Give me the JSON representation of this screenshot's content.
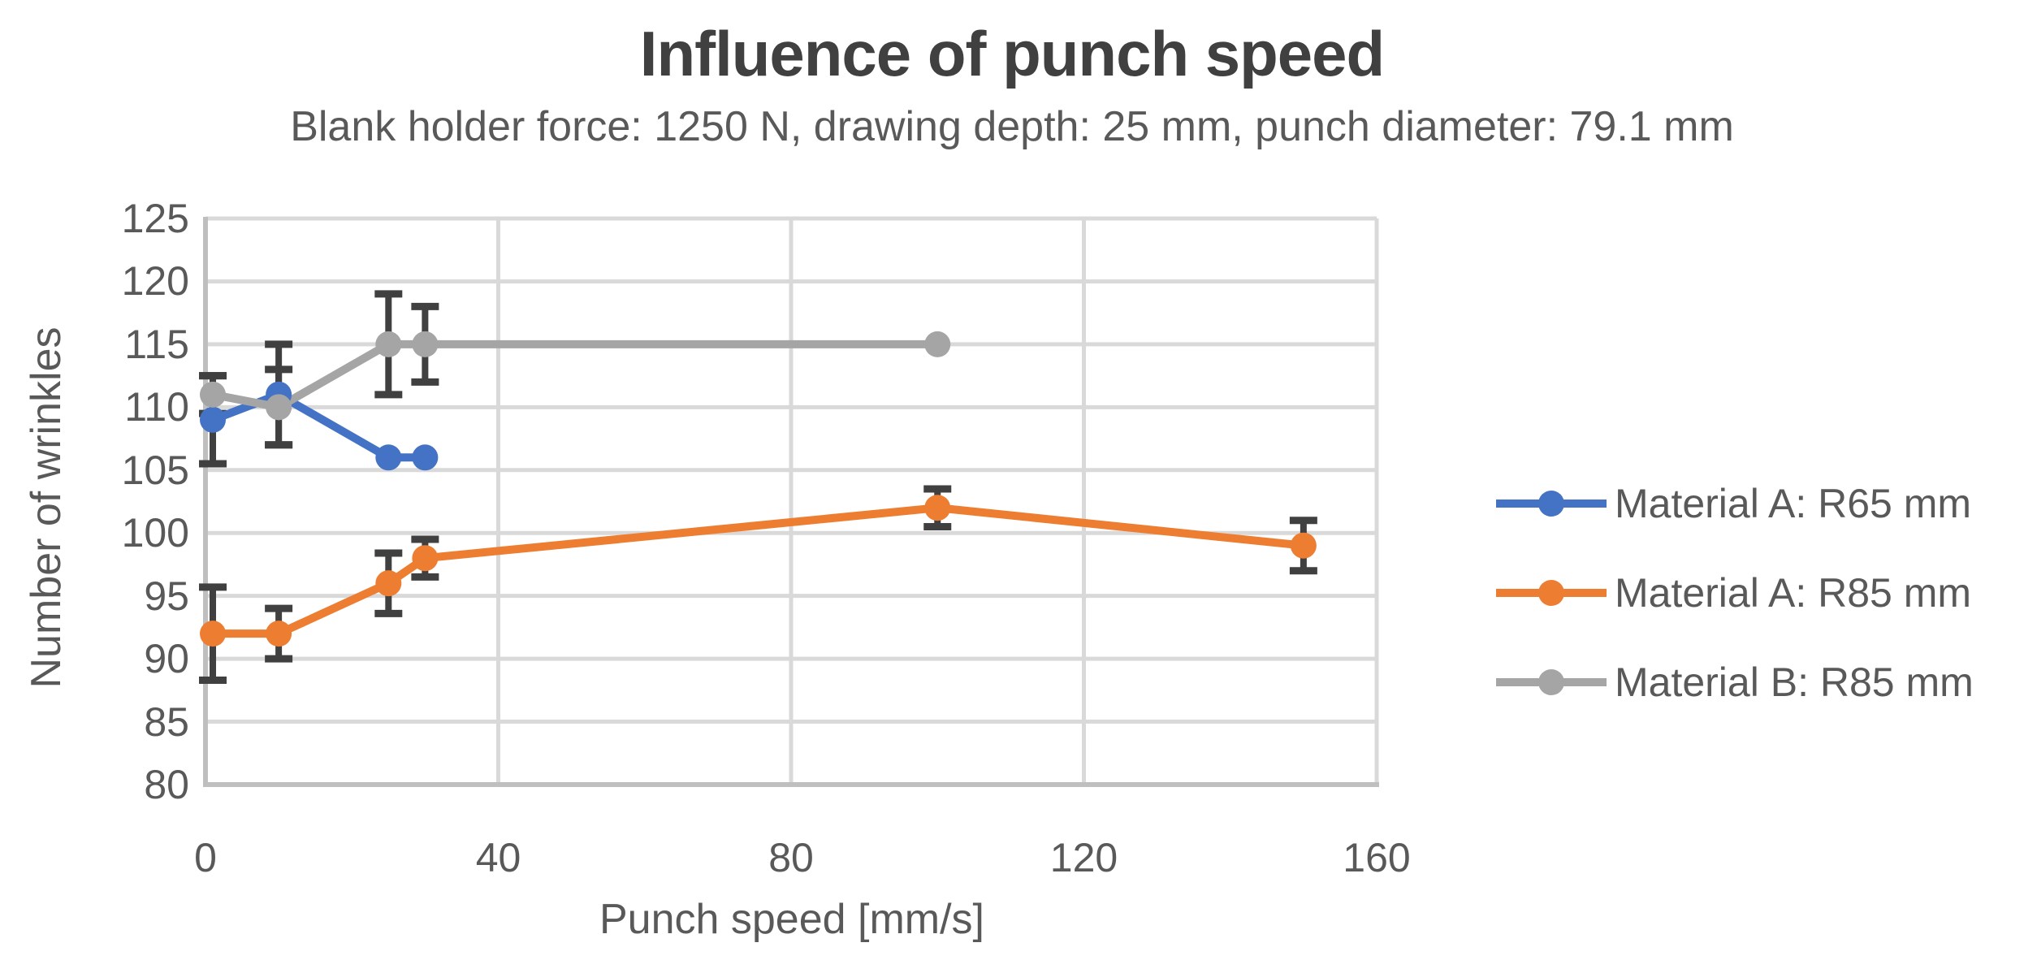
{
  "chart_data": {
    "type": "line",
    "title": "Influence of punch speed",
    "subtitle": "Blank holder force: 1250 N, drawing depth: 25 mm, punch diameter: 79.1 mm",
    "xlabel": "Punch speed [mm/s]",
    "ylabel": "Number of wrinkles",
    "xlim": [
      0,
      160
    ],
    "ylim": [
      80,
      125
    ],
    "x_ticks": [
      0,
      40,
      80,
      120,
      160
    ],
    "y_ticks": [
      80,
      85,
      90,
      95,
      100,
      105,
      110,
      115,
      120,
      125
    ],
    "grid": true,
    "legend_position": "right",
    "error_bars": true,
    "series": [
      {
        "name": "Material A: R65 mm",
        "color": "#4472C4",
        "points": [
          {
            "x": 1,
            "y": 109,
            "err": 3.5
          },
          {
            "x": 10,
            "y": 111,
            "err": 4
          },
          {
            "x": 25,
            "y": 106,
            "err": 0
          },
          {
            "x": 30,
            "y": 106,
            "err": 0
          }
        ]
      },
      {
        "name": "Material A: R85 mm",
        "color": "#ED7D31",
        "points": [
          {
            "x": 1,
            "y": 92,
            "err": 3.7
          },
          {
            "x": 10,
            "y": 92,
            "err": 2
          },
          {
            "x": 25,
            "y": 96,
            "err": 2.4
          },
          {
            "x": 30,
            "y": 98,
            "err": 1.5
          },
          {
            "x": 100,
            "y": 102,
            "err": 1.5
          },
          {
            "x": 150,
            "y": 99,
            "err": 2
          }
        ]
      },
      {
        "name": "Material B: R85 mm",
        "color": "#A5A5A5",
        "points": [
          {
            "x": 1,
            "y": 111,
            "err": 1.5
          },
          {
            "x": 10,
            "y": 110,
            "err": 3
          },
          {
            "x": 25,
            "y": 115,
            "err": 4
          },
          {
            "x": 30,
            "y": 115,
            "err": 3
          },
          {
            "x": 100,
            "y": 115,
            "err": 0
          }
        ]
      }
    ],
    "colors": {
      "error_bar": "#404040",
      "gridline": "#D9D9D9",
      "axis_line": "#BFBFBF",
      "title_text": "#404040",
      "label_text": "#595959",
      "background": "#FFFFFF"
    }
  }
}
